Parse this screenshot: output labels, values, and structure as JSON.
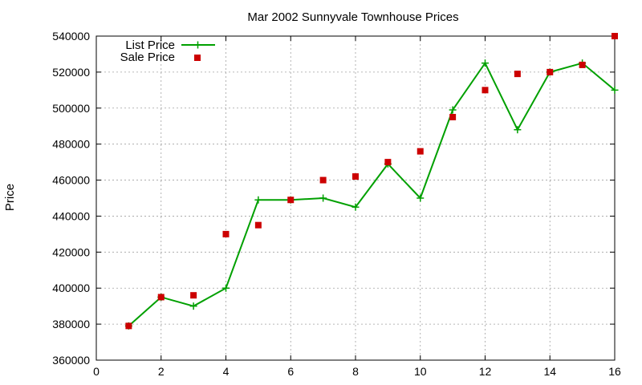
{
  "chart_data": {
    "type": "line",
    "title": "Mar 2002 Sunnyvale Townhouse Prices",
    "xlabel": "",
    "ylabel": "Price",
    "xlim": [
      0,
      16
    ],
    "ylim": [
      360000,
      540000
    ],
    "xticks": [
      0,
      2,
      4,
      6,
      8,
      10,
      12,
      14,
      16
    ],
    "yticks": [
      360000,
      380000,
      400000,
      420000,
      440000,
      460000,
      480000,
      500000,
      520000,
      540000
    ],
    "grid": true,
    "legend_position": "top-left",
    "series": [
      {
        "name": "List Price",
        "style": "line-plus",
        "color": "#00a000",
        "x": [
          1,
          2,
          3,
          4,
          5,
          6,
          7,
          8,
          9,
          10,
          11,
          12,
          13,
          14,
          15,
          16
        ],
        "y": [
          379000,
          395000,
          390000,
          400000,
          449000,
          449000,
          450000,
          445000,
          469000,
          450000,
          499000,
          525000,
          488000,
          520000,
          525000,
          510000
        ]
      },
      {
        "name": "Sale Price",
        "style": "square-markers",
        "color": "#cc0000",
        "x": [
          1,
          2,
          3,
          4,
          5,
          6,
          7,
          8,
          9,
          10,
          11,
          12,
          13,
          14,
          15,
          16
        ],
        "y": [
          379000,
          395000,
          396000,
          430000,
          435000,
          449000,
          460000,
          462000,
          470000,
          476000,
          495000,
          510000,
          519000,
          520000,
          524000,
          540000
        ]
      }
    ]
  }
}
